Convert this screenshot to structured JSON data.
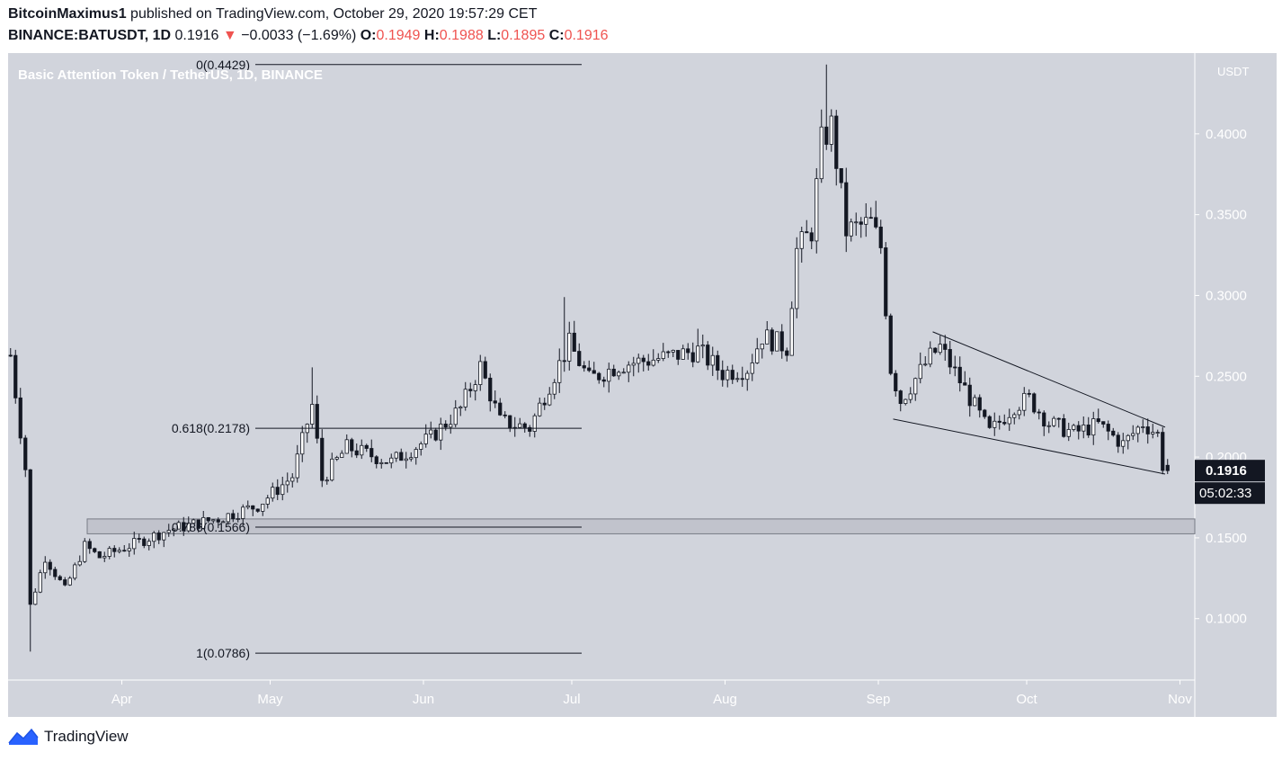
{
  "header": {
    "author": "BitcoinMaximus1",
    "published_text": "published on TradingView.com, October 29, 2020 19:57:29 CET",
    "symbol": "BINANCE:BATUSDT, 1D",
    "last_price": "0.1916",
    "change_arrow": "▼",
    "change": "−0.0033 (−1.69%)",
    "o_label": "O:",
    "o_value": "0.1949",
    "h_label": "H:",
    "h_value": "0.1988",
    "l_label": "L:",
    "l_value": "0.1895",
    "c_label": "C:",
    "c_value": "0.1916"
  },
  "footer": {
    "brand": "TradingView",
    "logo_icon": "tradingview-logo-icon"
  },
  "colors": {
    "background": "#d1d4dc",
    "candle_up": "#ffffff",
    "candle_down": "#131722",
    "accent_red": "#ef5350",
    "label_bg": "#131722"
  },
  "chart_data": {
    "type": "candlestick",
    "title": "Basic Attention Token / TetherUS, 1D, BINANCE",
    "currency": "USDT",
    "timeframe": "1D",
    "x_range": [
      "2020-03-09",
      "2020-11-04"
    ],
    "ylim": [
      0.062,
      0.45
    ],
    "y_ticks": [
      "0.1000",
      "0.1500",
      "0.2000",
      "0.2500",
      "0.3000",
      "0.3500",
      "0.4000"
    ],
    "x_ticks": [
      {
        "label": "Apr",
        "date": "2020-04-01"
      },
      {
        "label": "May",
        "date": "2020-05-01"
      },
      {
        "label": "Jun",
        "date": "2020-06-01"
      },
      {
        "label": "Jul",
        "date": "2020-07-01"
      },
      {
        "label": "Aug",
        "date": "2020-08-01"
      },
      {
        "label": "Sep",
        "date": "2020-09-01"
      },
      {
        "label": "Oct",
        "date": "2020-10-01"
      },
      {
        "label": "Nov",
        "date": "2020-11-01"
      }
    ],
    "last_price_label": "0.1916",
    "countdown_label": "05:02:33",
    "fib_levels": [
      {
        "label": "0(0.4429)",
        "value": 0.4429,
        "from": "2020-04-28",
        "to": "2020-07-03"
      },
      {
        "label": "0.618(0.2178)",
        "value": 0.2178,
        "from": "2020-04-28",
        "to": "2020-07-03"
      },
      {
        "label": "0.786(0.1566)",
        "value": 0.1566,
        "from": "2020-04-28",
        "to": "2020-07-03"
      },
      {
        "label": "1(0.0786)",
        "value": 0.0786,
        "from": "2020-04-28",
        "to": "2020-07-03"
      }
    ],
    "support_zone": {
      "top": 0.1617,
      "bottom": 0.1525,
      "from": "2020-03-25",
      "to": "2020-11-04"
    },
    "wedge": {
      "upper": [
        {
          "date": "2020-09-12",
          "value": 0.2775
        },
        {
          "date": "2020-10-29",
          "value": 0.2185
        }
      ],
      "lower": [
        {
          "date": "2020-09-04",
          "value": 0.2235
        },
        {
          "date": "2020-10-29",
          "value": 0.1895
        }
      ]
    },
    "anchors": [
      {
        "date": "2020-03-09",
        "value": 0.263
      },
      {
        "date": "2020-03-12",
        "value": 0.193
      },
      {
        "date": "2020-03-13",
        "value": 0.108
      },
      {
        "date": "2020-03-16",
        "value": 0.138
      },
      {
        "date": "2020-03-20",
        "value": 0.118
      },
      {
        "date": "2020-03-24",
        "value": 0.145
      },
      {
        "date": "2020-03-27",
        "value": 0.138
      },
      {
        "date": "2020-04-02",
        "value": 0.145
      },
      {
        "date": "2020-04-10",
        "value": 0.155
      },
      {
        "date": "2020-04-20",
        "value": 0.162
      },
      {
        "date": "2020-04-28",
        "value": 0.17
      },
      {
        "date": "2020-05-05",
        "value": 0.188
      },
      {
        "date": "2020-05-09",
        "value": 0.232
      },
      {
        "date": "2020-05-11",
        "value": 0.186
      },
      {
        "date": "2020-05-16",
        "value": 0.206
      },
      {
        "date": "2020-05-25",
        "value": 0.197
      },
      {
        "date": "2020-06-02",
        "value": 0.212
      },
      {
        "date": "2020-06-08",
        "value": 0.23
      },
      {
        "date": "2020-06-12",
        "value": 0.256
      },
      {
        "date": "2020-06-16",
        "value": 0.222
      },
      {
        "date": "2020-06-22",
        "value": 0.218
      },
      {
        "date": "2020-06-26",
        "value": 0.245
      },
      {
        "date": "2020-06-30",
        "value": 0.27
      },
      {
        "date": "2020-07-04",
        "value": 0.248
      },
      {
        "date": "2020-07-10",
        "value": 0.257
      },
      {
        "date": "2020-07-20",
        "value": 0.262
      },
      {
        "date": "2020-07-26",
        "value": 0.266
      },
      {
        "date": "2020-07-31",
        "value": 0.252
      },
      {
        "date": "2020-08-05",
        "value": 0.255
      },
      {
        "date": "2020-08-08",
        "value": 0.275
      },
      {
        "date": "2020-08-13",
        "value": 0.268
      },
      {
        "date": "2020-08-15",
        "value": 0.328
      },
      {
        "date": "2020-08-18",
        "value": 0.34
      },
      {
        "date": "2020-08-20",
        "value": 0.395
      },
      {
        "date": "2020-08-22",
        "value": 0.405
      },
      {
        "date": "2020-08-25",
        "value": 0.34
      },
      {
        "date": "2020-08-30",
        "value": 0.345
      },
      {
        "date": "2020-09-01",
        "value": 0.33
      },
      {
        "date": "2020-09-03",
        "value": 0.255
      },
      {
        "date": "2020-09-05",
        "value": 0.235
      },
      {
        "date": "2020-09-11",
        "value": 0.262
      },
      {
        "date": "2020-09-13",
        "value": 0.268
      },
      {
        "date": "2020-09-18",
        "value": 0.242
      },
      {
        "date": "2020-09-23",
        "value": 0.215
      },
      {
        "date": "2020-09-28",
        "value": 0.232
      },
      {
        "date": "2020-10-01",
        "value": 0.236
      },
      {
        "date": "2020-10-05",
        "value": 0.221
      },
      {
        "date": "2020-10-10",
        "value": 0.215
      },
      {
        "date": "2020-10-15",
        "value": 0.22
      },
      {
        "date": "2020-10-20",
        "value": 0.208
      },
      {
        "date": "2020-10-24",
        "value": 0.221
      },
      {
        "date": "2020-10-27",
        "value": 0.214
      },
      {
        "date": "2020-10-28",
        "value": 0.1949
      },
      {
        "date": "2020-10-29",
        "value": 0.1916
      }
    ],
    "wick_spikes": [
      {
        "date": "2020-03-09",
        "value": 0.262
      },
      {
        "date": "2020-03-13",
        "value": 0.0796
      },
      {
        "date": "2020-05-09",
        "value": 0.2555
      },
      {
        "date": "2020-06-29",
        "value": 0.299
      },
      {
        "date": "2020-08-21",
        "value": 0.4429
      },
      {
        "date": "2020-07-26",
        "value": 0.2794
      }
    ]
  }
}
